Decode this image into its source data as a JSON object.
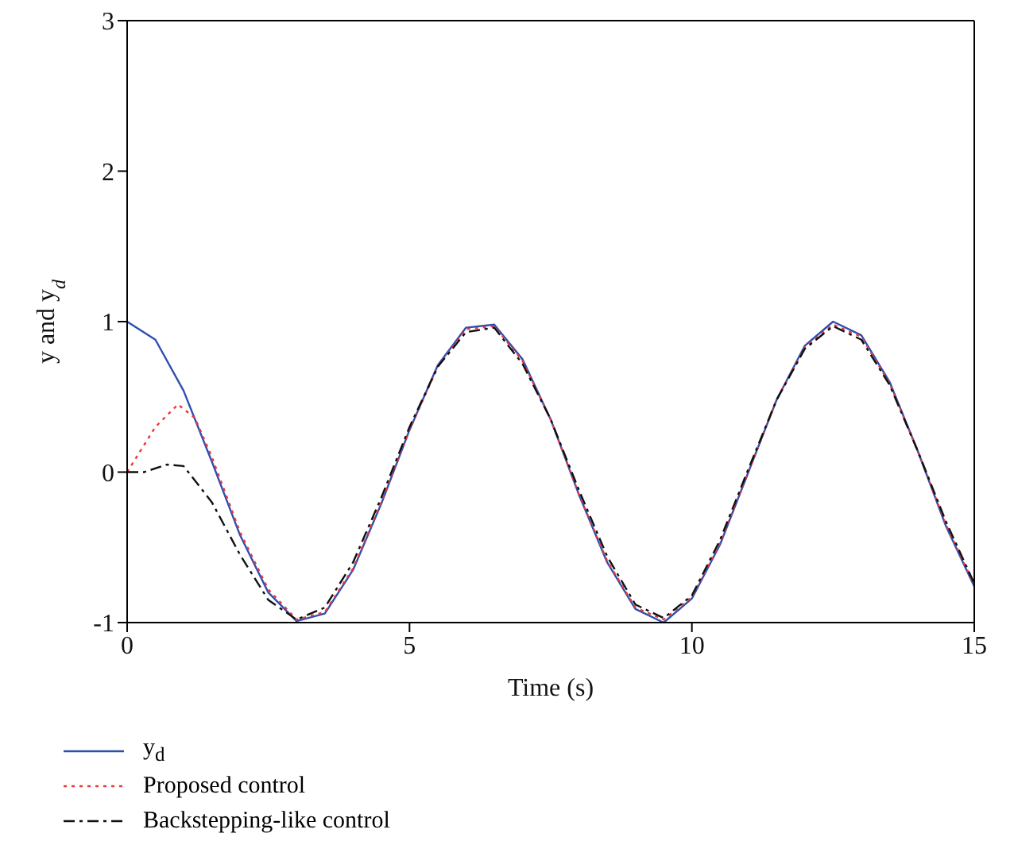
{
  "chart_data": {
    "type": "line",
    "xlabel": "Time (s)",
    "ylabel": "y and y$_{d}$",
    "xlim": [
      0,
      15
    ],
    "ylim": [
      -1,
      3
    ],
    "xticks": [
      0,
      5,
      10,
      15
    ],
    "yticks": [
      -1,
      0,
      1,
      2,
      3
    ],
    "legend": "bottom",
    "marker": "none",
    "x": [
      0,
      0.5,
      1,
      1.5,
      2,
      2.5,
      3,
      3.5,
      4,
      4.5,
      5,
      5.5,
      6,
      6.5,
      7,
      7.5,
      8,
      8.5,
      9,
      9.5,
      10,
      10.5,
      11,
      11.5,
      12,
      12.5,
      13,
      13.5,
      14,
      14.5,
      15
    ],
    "series": [
      {
        "name": "y$_{d}$",
        "color": "#2f4fb0",
        "line_style": "solid",
        "values": [
          1,
          0.88,
          0.54,
          0.07,
          -0.42,
          -0.8,
          -0.99,
          -0.94,
          -0.65,
          -0.21,
          0.28,
          0.71,
          0.96,
          0.98,
          0.75,
          0.35,
          -0.15,
          -0.6,
          -0.91,
          -1,
          -0.84,
          -0.48,
          0,
          0.48,
          0.84,
          1,
          0.91,
          0.6,
          0.14,
          -0.36,
          -0.76
        ]
      },
      {
        "name": "Proposed control",
        "color": "#e8383d",
        "line_style": "dotted",
        "x": [
          0,
          0.5,
          0.9,
          1.2,
          1.5,
          2,
          2.5,
          3,
          3.5,
          4,
          4.5,
          5,
          5.5,
          6,
          6.5,
          7,
          7.5,
          8,
          8.5,
          9,
          9.5,
          10,
          10.5,
          11,
          11.5,
          12,
          12.5,
          13,
          13.5,
          14,
          14.5,
          15
        ],
        "values": [
          0,
          0.3,
          0.45,
          0.36,
          0.1,
          -0.4,
          -0.78,
          -0.98,
          -0.93,
          -0.64,
          -0.2,
          0.28,
          0.7,
          0.95,
          0.97,
          0.74,
          0.35,
          -0.15,
          -0.59,
          -0.9,
          -0.98,
          -0.83,
          -0.47,
          0,
          0.48,
          0.83,
          0.98,
          0.9,
          0.59,
          0.14,
          -0.35,
          -0.75
        ]
      },
      {
        "name": "Backstepping-like control",
        "color": "#111111",
        "line_style": "dashdot",
        "x": [
          0,
          0.3,
          0.7,
          1,
          1.5,
          2,
          2.5,
          3,
          3.5,
          4,
          4.5,
          5,
          5.5,
          6,
          6.5,
          7,
          7.5,
          8,
          8.5,
          9,
          9.5,
          10,
          10.5,
          11,
          11.5,
          12,
          12.5,
          13,
          13.5,
          14,
          14.5,
          15
        ],
        "values": [
          0,
          0,
          0.05,
          0.04,
          -0.2,
          -0.55,
          -0.85,
          -0.98,
          -0.9,
          -0.6,
          -0.17,
          0.3,
          0.7,
          0.93,
          0.96,
          0.72,
          0.35,
          -0.12,
          -0.56,
          -0.88,
          -0.97,
          -0.82,
          -0.45,
          0.02,
          0.48,
          0.82,
          0.97,
          0.88,
          0.58,
          0.14,
          -0.33,
          -0.74
        ]
      }
    ]
  }
}
